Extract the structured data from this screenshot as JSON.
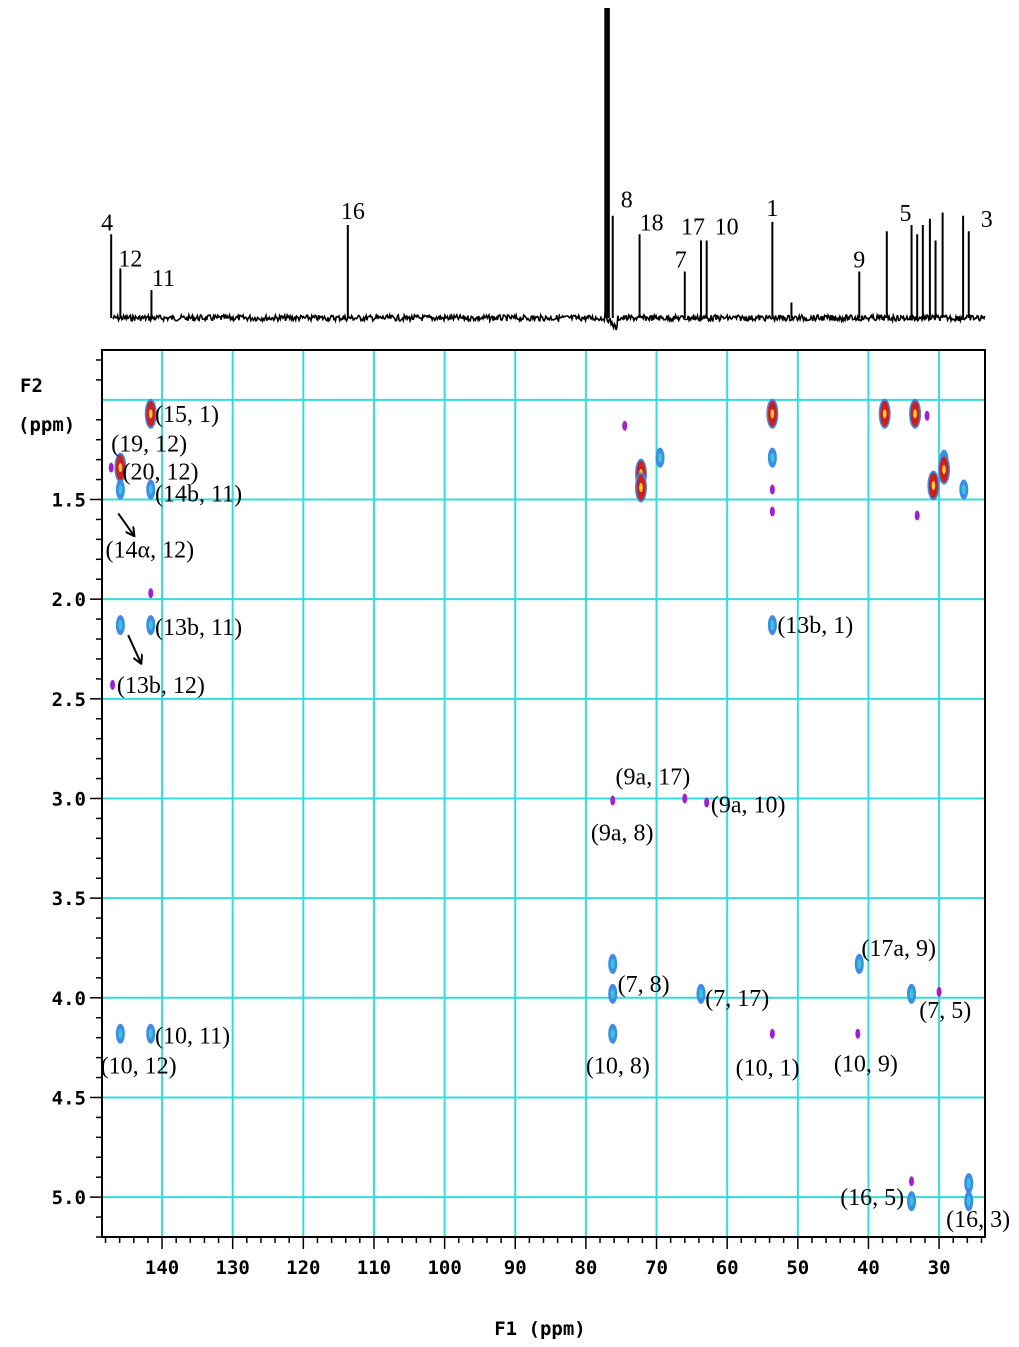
{
  "chart_data": {
    "type": "heatmap",
    "x_axis": {
      "label": "F1 (ppm)",
      "range": [
        148.5,
        23.5
      ],
      "reversed": true,
      "ticks": [
        140,
        130,
        120,
        110,
        100,
        90,
        80,
        70,
        60,
        50,
        40,
        30
      ],
      "tick_labels": [
        "140",
        "130",
        "120",
        "110",
        "100",
        "90",
        "80",
        "70",
        "60",
        "50",
        "40",
        "30"
      ]
    },
    "y_axis": {
      "label_line1": "F2",
      "label_line2": "(ppm)",
      "range": [
        0.75,
        5.2
      ],
      "reversed": true,
      "ticks": [
        1.5,
        2.0,
        2.5,
        3.0,
        3.5,
        4.0,
        4.5,
        5.0
      ],
      "tick_labels": [
        "1.5",
        "2.0",
        "2.5",
        "3.0",
        "3.5",
        "4.0",
        "4.5",
        "5.0"
      ]
    },
    "grid": true,
    "projection_peaks": [
      {
        "label": "4",
        "ppm": 147.2,
        "height": 0.27
      },
      {
        "label": "12",
        "ppm": 145.9,
        "height": 0.16
      },
      {
        "label": "11",
        "ppm": 141.5,
        "height": 0.09
      },
      {
        "label": "16",
        "ppm": 113.7,
        "height": 0.3
      },
      {
        "label": "8",
        "ppm": 76.2,
        "height": 0.33
      },
      {
        "label": "18",
        "ppm": 72.4,
        "height": 0.27
      },
      {
        "label": "7",
        "ppm": 66.0,
        "height": 0.15
      },
      {
        "label": "17",
        "ppm": 63.7,
        "height": 0.25
      },
      {
        "label": "10",
        "ppm": 62.9,
        "height": 0.25
      },
      {
        "label": "1",
        "ppm": 53.6,
        "height": 0.31
      },
      {
        "label": "9",
        "ppm": 41.3,
        "height": 0.15
      },
      {
        "label": "5",
        "ppm": 33.9,
        "height": 0.3
      },
      {
        "label": "3",
        "ppm": 25.8,
        "height": 0.28
      }
    ],
    "projection_unlabeled_peaks": [
      {
        "ppm": 50.9,
        "height": 0.05
      },
      {
        "ppm": 37.4,
        "height": 0.28
      },
      {
        "ppm": 33.1,
        "height": 0.27
      },
      {
        "ppm": 32.3,
        "height": 0.3
      },
      {
        "ppm": 31.3,
        "height": 0.32
      },
      {
        "ppm": 30.5,
        "height": 0.25
      },
      {
        "ppm": 29.5,
        "height": 0.34
      },
      {
        "ppm": 26.6,
        "height": 0.33
      }
    ],
    "solvent_peak": {
      "ppm": 77.0,
      "height": 1.0
    },
    "cross_peaks": [
      {
        "f1": 141.6,
        "f2": 1.07,
        "c": "red"
      },
      {
        "f1": 145.9,
        "f2": 1.34,
        "c": "red"
      },
      {
        "f1": 145.9,
        "f2": 1.45,
        "c": "cyan"
      },
      {
        "f1": 141.6,
        "f2": 1.45,
        "c": "blue"
      },
      {
        "f1": 147.2,
        "f2": 1.34,
        "c": "purple"
      },
      {
        "f1": 141.6,
        "f2": 1.97,
        "c": "purple"
      },
      {
        "f1": 145.9,
        "f2": 2.13,
        "c": "blue"
      },
      {
        "f1": 141.6,
        "f2": 2.13,
        "c": "blue"
      },
      {
        "f1": 147.0,
        "f2": 2.43,
        "c": "purple"
      },
      {
        "f1": 74.5,
        "f2": 1.13,
        "c": "purple"
      },
      {
        "f1": 72.2,
        "f2": 1.37,
        "c": "red"
      },
      {
        "f1": 72.2,
        "f2": 1.44,
        "c": "red"
      },
      {
        "f1": 69.5,
        "f2": 1.29,
        "c": "blue"
      },
      {
        "f1": 53.6,
        "f2": 1.07,
        "c": "red"
      },
      {
        "f1": 53.6,
        "f2": 1.29,
        "c": "blue"
      },
      {
        "f1": 53.6,
        "f2": 1.45,
        "c": "purple"
      },
      {
        "f1": 53.6,
        "f2": 1.56,
        "c": "purple"
      },
      {
        "f1": 37.7,
        "f2": 1.07,
        "c": "red"
      },
      {
        "f1": 33.4,
        "f2": 1.07,
        "c": "red"
      },
      {
        "f1": 31.7,
        "f2": 1.08,
        "c": "purple"
      },
      {
        "f1": 29.3,
        "f2": 1.3,
        "c": "blue"
      },
      {
        "f1": 29.3,
        "f2": 1.35,
        "c": "red"
      },
      {
        "f1": 30.8,
        "f2": 1.43,
        "c": "red"
      },
      {
        "f1": 26.5,
        "f2": 1.45,
        "c": "blue"
      },
      {
        "f1": 33.1,
        "f2": 1.58,
        "c": "purple"
      },
      {
        "f1": 53.6,
        "f2": 2.13,
        "c": "blue"
      },
      {
        "f1": 76.2,
        "f2": 3.01,
        "c": "purple"
      },
      {
        "f1": 66.0,
        "f2": 3.0,
        "c": "purple"
      },
      {
        "f1": 62.9,
        "f2": 3.02,
        "c": "purple"
      },
      {
        "f1": 76.2,
        "f2": 3.83,
        "c": "blue"
      },
      {
        "f1": 76.2,
        "f2": 3.98,
        "c": "blue"
      },
      {
        "f1": 63.7,
        "f2": 3.98,
        "c": "blue"
      },
      {
        "f1": 41.3,
        "f2": 3.83,
        "c": "blue"
      },
      {
        "f1": 33.9,
        "f2": 3.98,
        "c": "blue"
      },
      {
        "f1": 30.0,
        "f2": 3.97,
        "c": "purple"
      },
      {
        "f1": 145.9,
        "f2": 4.18,
        "c": "blue"
      },
      {
        "f1": 141.6,
        "f2": 4.18,
        "c": "blue"
      },
      {
        "f1": 76.2,
        "f2": 4.18,
        "c": "blue"
      },
      {
        "f1": 53.6,
        "f2": 4.18,
        "c": "purple"
      },
      {
        "f1": 41.5,
        "f2": 4.18,
        "c": "purple"
      },
      {
        "f1": 33.9,
        "f2": 4.92,
        "c": "purple"
      },
      {
        "f1": 33.9,
        "f2": 5.02,
        "c": "blue"
      },
      {
        "f1": 25.8,
        "f2": 4.93,
        "c": "blue"
      },
      {
        "f1": 25.8,
        "f2": 5.02,
        "c": "blue"
      }
    ],
    "annotations": [
      {
        "text": "(15, 1)",
        "f1": 141.0,
        "f2": 1.07,
        "anchor": "start"
      },
      {
        "text": "(19, 12)",
        "f1": 147.2,
        "f2": 1.22,
        "anchor": "start"
      },
      {
        "text": "(20, 12)",
        "f1": 145.6,
        "f2": 1.36,
        "anchor": "start"
      },
      {
        "text": "(14b, 11)",
        "f1": 141.0,
        "f2": 1.47,
        "anchor": "start"
      },
      {
        "text": "(14α, 12)",
        "f1": 148.0,
        "f2": 1.75,
        "anchor": "start"
      },
      {
        "text": "(13b, 11)",
        "f1": 141.0,
        "f2": 2.14,
        "anchor": "start"
      },
      {
        "text": "(13b, 12)",
        "f1": 146.4,
        "f2": 2.43,
        "anchor": "start"
      },
      {
        "text": "(13b, 1)",
        "f1": 52.9,
        "f2": 2.13,
        "anchor": "start"
      },
      {
        "text": "(9a, 17)",
        "f1": 75.8,
        "f2": 2.89,
        "anchor": "start"
      },
      {
        "text": "(9a, 10)",
        "f1": 62.3,
        "f2": 3.03,
        "anchor": "start"
      },
      {
        "text": "(9a, 8)",
        "f1": 79.3,
        "f2": 3.17,
        "anchor": "start"
      },
      {
        "text": "(17a, 9)",
        "f1": 41.0,
        "f2": 3.75,
        "anchor": "start"
      },
      {
        "text": "(7, 8)",
        "f1": 75.5,
        "f2": 3.93,
        "anchor": "start"
      },
      {
        "text": "(7, 17)",
        "f1": 63.1,
        "f2": 4.0,
        "anchor": "start"
      },
      {
        "text": "(7, 5)",
        "f1": 32.8,
        "f2": 4.06,
        "anchor": "start"
      },
      {
        "text": "(10, 11)",
        "f1": 141.0,
        "f2": 4.19,
        "anchor": "start"
      },
      {
        "text": "(10, 12)",
        "f1": 148.7,
        "f2": 4.34,
        "anchor": "start"
      },
      {
        "text": "(10, 8)",
        "f1": 80.0,
        "f2": 4.34,
        "anchor": "start"
      },
      {
        "text": "(10, 1)",
        "f1": 58.8,
        "f2": 4.35,
        "anchor": "start"
      },
      {
        "text": "(10, 9)",
        "f1": 44.9,
        "f2": 4.33,
        "anchor": "start"
      },
      {
        "text": "(16, 5)",
        "f1": 44.0,
        "f2": 5.0,
        "anchor": "start"
      },
      {
        "text": "(16, 3)",
        "f1": 29.0,
        "f2": 5.11,
        "anchor": "start"
      }
    ],
    "arrows": [
      {
        "from": [
          146.2,
          1.57
        ],
        "to": [
          144.0,
          1.68
        ]
      },
      {
        "from": [
          144.8,
          2.18
        ],
        "to": [
          143.0,
          2.32
        ]
      }
    ]
  },
  "colors": {
    "grid": "#33dddd",
    "red": "#cc2020",
    "blue": "#3c8ce6",
    "cyan": "#35c7d7",
    "purple": "#a020d0",
    "ink": "#000000"
  }
}
